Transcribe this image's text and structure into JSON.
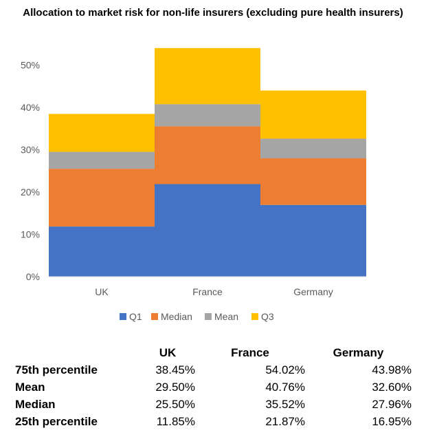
{
  "chart_data": {
    "type": "area",
    "stacking": "stepped",
    "title": "Allocation to market risk for non-life insurers (excluding pure health insurers)",
    "categories": [
      "UK",
      "France",
      "Germany"
    ],
    "series": [
      {
        "name": "Q1",
        "values": [
          11.85,
          21.87,
          16.95
        ],
        "color": "#4472C4"
      },
      {
        "name": "Median",
        "values": [
          25.5,
          35.52,
          27.96
        ],
        "color": "#ED7D31"
      },
      {
        "name": "Mean",
        "values": [
          29.5,
          40.76,
          32.6
        ],
        "color": "#A5A5A5"
      },
      {
        "name": "Q3",
        "values": [
          38.45,
          54.02,
          43.98
        ],
        "color": "#FFC000"
      }
    ],
    "ylim": [
      0,
      55
    ],
    "yticks": [
      "0%",
      "10%",
      "20%",
      "30%",
      "40%",
      "50%"
    ],
    "ytick_values": [
      0,
      10,
      20,
      30,
      40,
      50
    ],
    "grid": false,
    "legend": "bottom"
  },
  "table": {
    "headers": [
      "UK",
      "France",
      "Germany"
    ],
    "rows": [
      {
        "label": "75th percentile",
        "values": [
          "38.45%",
          "54.02%",
          "43.98%"
        ]
      },
      {
        "label": "Mean",
        "values": [
          "29.50%",
          "40.76%",
          "32.60%"
        ]
      },
      {
        "label": "Median",
        "values": [
          "25.50%",
          "35.52%",
          "27.96%"
        ]
      },
      {
        "label": "25th percentile",
        "values": [
          "11.85%",
          "21.87%",
          "16.95%"
        ]
      }
    ]
  }
}
